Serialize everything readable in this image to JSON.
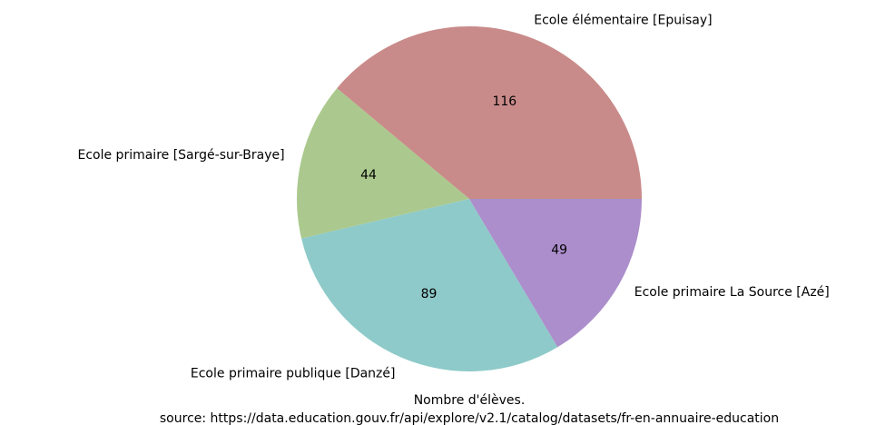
{
  "chart_data": {
    "type": "pie",
    "categories": [
      "Ecole élémentaire [Epuisay]",
      "Ecole primaire [Sargé-sur-Braye]",
      "Ecole primaire publique [Danzé]",
      "Ecole primaire La Source [Azé]"
    ],
    "values": [
      116,
      44,
      89,
      49
    ],
    "colors": [
      "#c98b8a",
      "#abc98e",
      "#8ecac9",
      "#ab8ecb"
    ],
    "xlabel": "Nombre d'élèves.",
    "source": "source: https://data.education.gouv.fr/api/explore/v2.1/catalog/datasets/fr-en-annuaire-education"
  }
}
